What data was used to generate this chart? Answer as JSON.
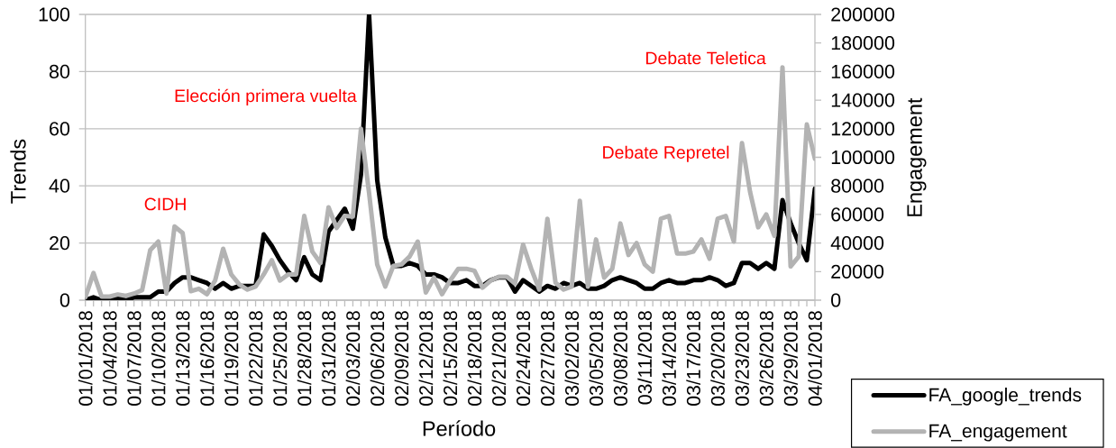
{
  "chart_data": {
    "type": "line",
    "xlabel": "Período",
    "ylabel": "Trends",
    "y2label": "Engagement",
    "categories": [
      "01/01/2018",
      null,
      null,
      "01/04/2018",
      null,
      null,
      "01/07/2018",
      null,
      null,
      "01/10/2018",
      null,
      null,
      "01/13/2018",
      null,
      null,
      "01/16/2018",
      null,
      null,
      "01/19/2018",
      null,
      null,
      "01/22/2018",
      null,
      null,
      "01/25/2018",
      null,
      null,
      "01/28/2018",
      null,
      null,
      "01/31/2018",
      null,
      null,
      "02/03/2018",
      null,
      null,
      "02/06/2018",
      null,
      null,
      "02/09/2018",
      null,
      null,
      "02/12/2018",
      null,
      null,
      "02/15/2018",
      null,
      null,
      "02/18/2018",
      null,
      null,
      "02/21/2018",
      null,
      null,
      "02/24/2018",
      null,
      null,
      "02/27/2018",
      null,
      null,
      "03/02/2018",
      null,
      null,
      "03/05/2018",
      null,
      null,
      "03/08/2018",
      null,
      null,
      "03/11/2018",
      null,
      null,
      "03/14/2018",
      null,
      null,
      "03/17/2018",
      null,
      null,
      "03/20/2018",
      null,
      null,
      "03/23/2018",
      null,
      null,
      "03/26/2018",
      null,
      null,
      "03/29/2018",
      null,
      null,
      "04/01/2018"
    ],
    "series": [
      {
        "name": "FA_google_trends",
        "color": "#000000",
        "values": [
          0,
          1,
          0,
          0,
          1,
          0,
          1,
          1,
          1,
          3,
          3,
          6,
          8,
          8,
          7,
          6,
          4,
          6,
          4,
          5,
          5,
          5,
          23,
          19,
          14,
          10,
          7,
          15,
          9,
          7,
          24,
          28,
          32,
          25,
          44,
          100,
          42,
          22,
          12,
          12,
          13,
          12,
          9,
          9,
          8,
          6,
          6,
          7,
          5,
          5,
          7,
          8,
          8,
          3,
          7,
          5,
          3,
          5,
          4,
          6,
          5,
          6,
          4,
          4,
          5,
          7,
          8,
          7,
          6,
          4,
          4,
          6,
          7,
          6,
          6,
          7,
          7,
          8,
          7,
          5,
          6,
          13,
          13,
          11,
          13,
          11,
          35,
          27,
          20,
          14,
          39
        ]
      },
      {
        "name": "FA_engagement",
        "color": "#b3b3b3",
        "axis": "y2",
        "values": [
          2000,
          19000,
          2500,
          2500,
          4000,
          3000,
          4600,
          7000,
          35000,
          41000,
          4600,
          51600,
          47000,
          6300,
          8000,
          4200,
          13700,
          36000,
          18000,
          11000,
          7400,
          9500,
          18000,
          28000,
          13700,
          18000,
          18000,
          59000,
          34000,
          26000,
          65000,
          50500,
          59000,
          58500,
          120000,
          75000,
          25000,
          9500,
          24000,
          25000,
          30500,
          41000,
          5300,
          15800,
          4200,
          13700,
          22000,
          22000,
          20600,
          8800,
          13700,
          16400,
          16400,
          11600,
          39000,
          22000,
          7400,
          57000,
          12200,
          7400,
          9500,
          69500,
          9500,
          42500,
          15800,
          22000,
          53700,
          31600,
          40000,
          25000,
          20000,
          57000,
          59000,
          32600,
          32600,
          34000,
          42500,
          29000,
          57000,
          59000,
          41000,
          110000,
          75800,
          51000,
          60000,
          45000,
          163000,
          23600,
          30500,
          123000,
          99000
        ]
      }
    ],
    "ylim": [
      0,
      100
    ],
    "yticks": [
      0,
      20,
      40,
      60,
      80,
      100
    ],
    "y2lim": [
      0,
      200000
    ],
    "y2ticks": [
      0,
      20000,
      40000,
      60000,
      80000,
      100000,
      120000,
      140000,
      160000,
      180000,
      200000
    ],
    "grid": "y",
    "legend": "bottom right",
    "annotations": [
      "CIDH",
      "Elección primera vuelta",
      "Debate Repretel",
      "Debate Teletica"
    ]
  }
}
